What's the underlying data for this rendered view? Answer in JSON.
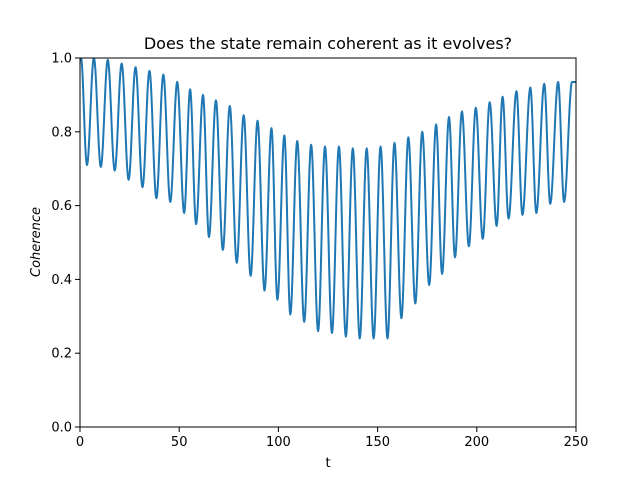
{
  "chart_data": {
    "type": "line",
    "title": "Does the state remain coherent as it evolves?",
    "xlabel": "t",
    "ylabel": "Coherence",
    "xlim": [
      0,
      250
    ],
    "ylim": [
      0.0,
      1.0
    ],
    "x_ticks": [
      0,
      50,
      100,
      150,
      200,
      250
    ],
    "x_tick_labels": [
      "0",
      "50",
      "100",
      "150",
      "200",
      "250"
    ],
    "y_ticks": [
      0.0,
      0.2,
      0.4,
      0.6,
      0.8,
      1.0
    ],
    "y_tick_labels": [
      "0.0",
      "0.2",
      "0.4",
      "0.6",
      "0.8",
      "1.0"
    ],
    "grid": false,
    "legend": "none",
    "series": [
      {
        "color": "#1f77b4",
        "dip_times": [
          3.5,
          10.5,
          17.5,
          24.5,
          31.5,
          38.5,
          45.5,
          52.5,
          58.5,
          65,
          72,
          79,
          86,
          93,
          99.5,
          106,
          113,
          120,
          127,
          134,
          141,
          148,
          155,
          162,
          169,
          176,
          182.5,
          189,
          196,
          203,
          210,
          216,
          223,
          230,
          237,
          244
        ],
        "dip_minima": [
          0.71,
          0.705,
          0.695,
          0.67,
          0.65,
          0.62,
          0.61,
          0.58,
          0.55,
          0.515,
          0.48,
          0.445,
          0.41,
          0.37,
          0.345,
          0.305,
          0.285,
          0.26,
          0.255,
          0.245,
          0.24,
          0.24,
          0.24,
          0.295,
          0.335,
          0.385,
          0.415,
          0.46,
          0.49,
          0.51,
          0.545,
          0.565,
          0.575,
          0.58,
          0.605,
          0.61
        ],
        "peak_times": [
          0.5,
          7,
          14,
          21,
          28,
          35,
          42,
          49,
          55.5,
          62,
          68.5,
          75.5,
          82.5,
          89.5,
          96.5,
          103,
          109.5,
          116.5,
          123.5,
          130.5,
          137.5,
          144.5,
          151.5,
          158.5,
          165.5,
          172.5,
          179.5,
          186,
          192.5,
          199.5,
          206.5,
          213,
          220,
          227,
          234,
          241,
          248
        ],
        "peak_maxima": [
          1.0,
          1.0,
          0.995,
          0.985,
          0.975,
          0.965,
          0.955,
          0.935,
          0.915,
          0.9,
          0.885,
          0.87,
          0.845,
          0.83,
          0.81,
          0.79,
          0.775,
          0.765,
          0.76,
          0.76,
          0.755,
          0.755,
          0.76,
          0.77,
          0.785,
          0.8,
          0.82,
          0.84,
          0.855,
          0.865,
          0.88,
          0.895,
          0.91,
          0.92,
          0.93,
          0.935,
          0.935
        ],
        "x_end": 250
      }
    ]
  }
}
